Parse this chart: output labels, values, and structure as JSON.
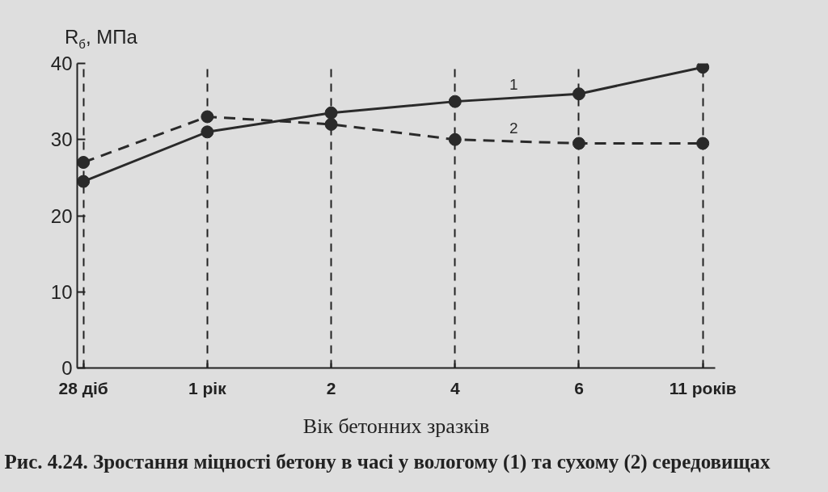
{
  "chart_data": {
    "type": "line",
    "title": "Рис. 4.24. Зростання міцності бетону в часі у вологому (1) та сухому (2) середовищах",
    "xlabel": "Вік бетонних зразків",
    "ylabel": "R$_{б}$, МПа",
    "categories": [
      "28 діб",
      "1 рік",
      "2",
      "4",
      "6",
      "11 років"
    ],
    "ylim": [
      0,
      40
    ],
    "yticks": [
      0,
      10,
      20,
      30,
      40
    ],
    "grid": "x",
    "marker": "circle",
    "series": [
      {
        "name": "1",
        "color": "#2a2a2a",
        "line_style": "solid",
        "values": [
          24.5,
          31,
          33.5,
          35,
          36,
          39.5
        ]
      },
      {
        "name": "2",
        "color": "#2a2a2a",
        "line_style": "dashed",
        "values": [
          27,
          33,
          32,
          30,
          29.5,
          29.5
        ]
      }
    ]
  }
}
